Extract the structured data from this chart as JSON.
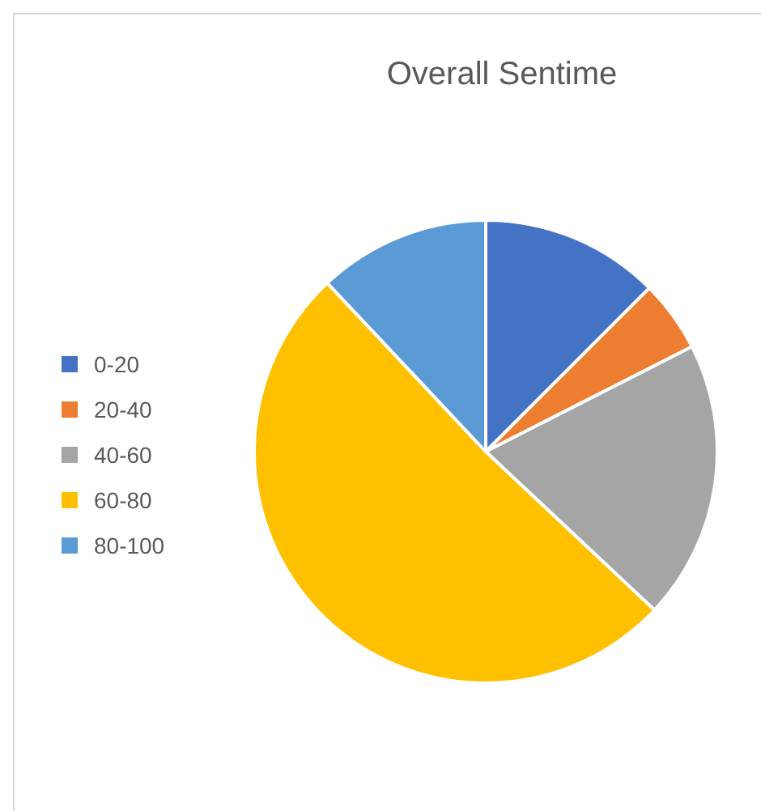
{
  "chart_data": {
    "type": "pie",
    "title": "Overall Sentime",
    "categories": [
      "0-20",
      "20-40",
      "40-60",
      "60-80",
      "80-100"
    ],
    "values": [
      12.5,
      5,
      19.5,
      51,
      12
    ],
    "colors": [
      "#4472c4",
      "#ed7d31",
      "#a5a5a5",
      "#ffc000",
      "#5b9bd5"
    ],
    "legend": "left"
  }
}
